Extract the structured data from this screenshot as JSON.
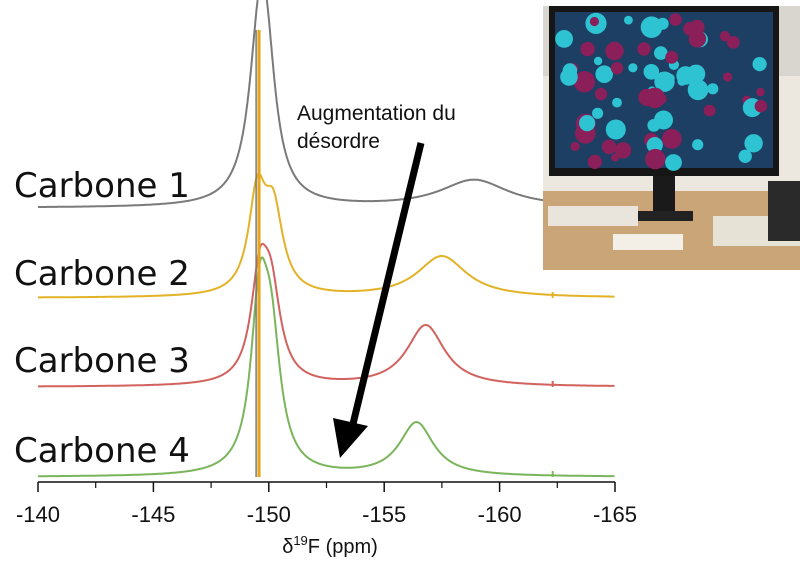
{
  "chart_data": {
    "type": "line",
    "title": "",
    "xlabel": "δ19F (ppm)",
    "xlabel_main": "δ",
    "xlabel_sup": "19",
    "xlabel_rest": "F (ppm)",
    "xlim": [
      -140,
      -165
    ],
    "x_reversed": true,
    "x_ticks": [
      -140,
      -145,
      -150,
      -155,
      -160,
      -165
    ],
    "x_tick_labels": [
      "-140",
      "-145",
      "-150",
      "-155",
      "-160",
      "-165"
    ],
    "grid": false,
    "legend": "none",
    "series": [
      {
        "name": "Carbone 1",
        "color": "#7a7a7a",
        "sharp_peak": -149.5,
        "peaks": [
          {
            "center": -149.6,
            "width": 0.55,
            "height": 1.0
          },
          {
            "center": -149.9,
            "width": 0.5,
            "height": 0.6
          },
          {
            "center": -158.9,
            "width": 1.8,
            "height": 0.18
          }
        ]
      },
      {
        "name": "Carbone 2",
        "color": "#e2b227",
        "sharp_peak": -149.5,
        "peaks": [
          {
            "center": -149.5,
            "width": 0.45,
            "height": 0.62
          },
          {
            "center": -150.2,
            "width": 0.5,
            "height": 0.52
          },
          {
            "center": -157.5,
            "width": 1.3,
            "height": 0.27
          }
        ]
      },
      {
        "name": "Carbone 3",
        "color": "#d2625e",
        "sharp_peak": -149.6,
        "peaks": [
          {
            "center": -149.6,
            "width": 0.45,
            "height": 0.62
          },
          {
            "center": -150.1,
            "width": 0.5,
            "height": 0.55
          },
          {
            "center": -156.8,
            "width": 1.0,
            "height": 0.4
          }
        ]
      },
      {
        "name": "Carbone 4",
        "color": "#7ab55c",
        "sharp_peak": -149.6,
        "peaks": [
          {
            "center": -149.6,
            "width": 0.45,
            "height": 1.0
          },
          {
            "center": -150.1,
            "width": 0.5,
            "height": 0.78
          },
          {
            "center": -156.4,
            "width": 0.9,
            "height": 0.35
          }
        ]
      }
    ],
    "annotation": {
      "text_line1": "Augmentation du",
      "text_line2": "désordre",
      "arrow": {
        "from_x": -157.4,
        "to_x": -153.0
      }
    }
  },
  "photo": {
    "subject": "computer-monitor-molecular-visualization",
    "colors": {
      "balls_cyan": "#2ec3d3",
      "balls_purple": "#8a1f5a",
      "frame": "#1a1a1a",
      "desk": "#c9a577"
    }
  }
}
